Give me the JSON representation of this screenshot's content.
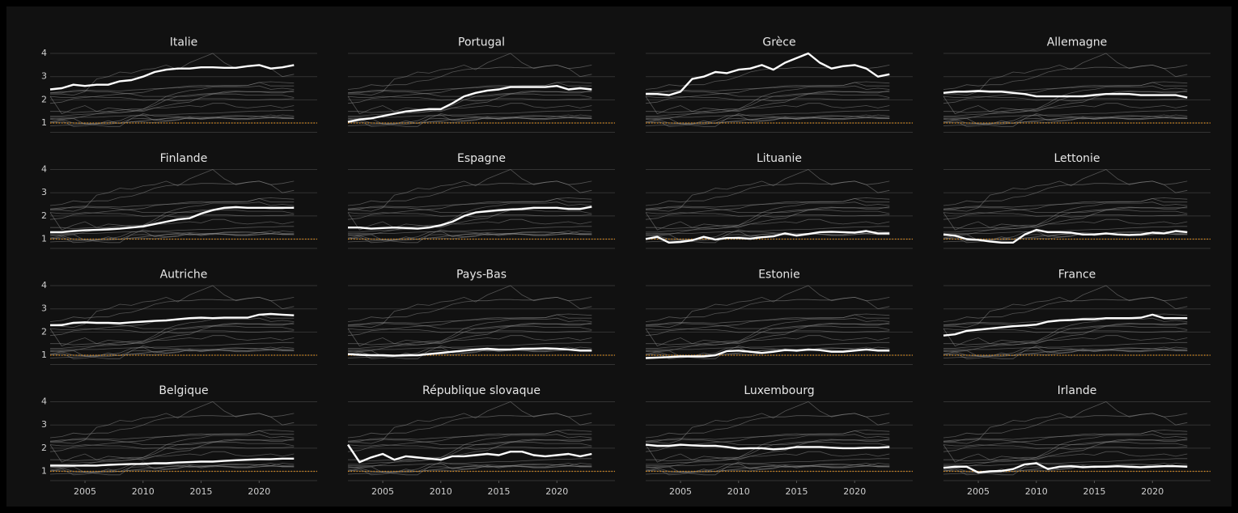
{
  "chart_data": {
    "type": "line",
    "x": [
      2002,
      2003,
      2004,
      2005,
      2006,
      2007,
      2008,
      2009,
      2010,
      2011,
      2012,
      2013,
      2014,
      2015,
      2016,
      2017,
      2018,
      2019,
      2020,
      2021,
      2022,
      2023
    ],
    "xlim": [
      2002,
      2025
    ],
    "xticks": [
      2005,
      2010,
      2015,
      2020
    ],
    "ylim": [
      0.6,
      4.2
    ],
    "yticks": [
      1,
      2,
      3,
      4
    ],
    "grid": true,
    "reference_line": 1,
    "reference_color": "#d98a1c",
    "highlight_color": "#ffffff",
    "context_color": "#8a8a8a",
    "series": [
      {
        "name": "Italie",
        "values": [
          2.45,
          2.5,
          2.65,
          2.6,
          2.65,
          2.65,
          2.8,
          2.85,
          3.0,
          3.2,
          3.3,
          3.35,
          3.35,
          3.4,
          3.4,
          3.38,
          3.38,
          3.45,
          3.5,
          3.35,
          3.4,
          3.5
        ]
      },
      {
        "name": "Portugal",
        "values": [
          1.05,
          1.15,
          1.2,
          1.3,
          1.4,
          1.5,
          1.55,
          1.6,
          1.6,
          1.85,
          2.15,
          2.3,
          2.4,
          2.45,
          2.55,
          2.55,
          2.55,
          2.55,
          2.6,
          2.45,
          2.5,
          2.45
        ]
      },
      {
        "name": "Grèce",
        "values": [
          2.25,
          2.25,
          2.2,
          2.35,
          2.9,
          3.0,
          3.2,
          3.15,
          3.3,
          3.35,
          3.5,
          3.3,
          3.6,
          3.8,
          4.0,
          3.6,
          3.35,
          3.45,
          3.5,
          3.35,
          3.0,
          3.1
        ]
      },
      {
        "name": "Allemagne",
        "values": [
          2.3,
          2.35,
          2.35,
          2.38,
          2.35,
          2.35,
          2.3,
          2.25,
          2.15,
          2.15,
          2.15,
          2.15,
          2.15,
          2.2,
          2.25,
          2.25,
          2.25,
          2.2,
          2.2,
          2.2,
          2.2,
          2.1
        ]
      },
      {
        "name": "Finlande",
        "values": [
          1.3,
          1.3,
          1.35,
          1.38,
          1.4,
          1.42,
          1.45,
          1.5,
          1.55,
          1.65,
          1.75,
          1.85,
          1.9,
          2.1,
          2.25,
          2.35,
          2.38,
          2.35,
          2.35,
          2.35,
          2.35,
          2.35
        ]
      },
      {
        "name": "Espagne",
        "values": [
          1.5,
          1.5,
          1.45,
          1.48,
          1.5,
          1.48,
          1.45,
          1.5,
          1.6,
          1.75,
          2.0,
          2.15,
          2.2,
          2.25,
          2.28,
          2.3,
          2.35,
          2.35,
          2.35,
          2.3,
          2.3,
          2.4
        ]
      },
      {
        "name": "Lituanie",
        "values": [
          1.0,
          1.1,
          0.85,
          0.88,
          0.95,
          1.1,
          0.98,
          1.05,
          1.05,
          1.02,
          1.08,
          1.12,
          1.25,
          1.15,
          1.22,
          1.3,
          1.32,
          1.3,
          1.28,
          1.35,
          1.25,
          1.25
        ]
      },
      {
        "name": "Lettonie",
        "values": [
          1.2,
          1.15,
          1.0,
          0.97,
          0.9,
          0.85,
          0.85,
          1.2,
          1.4,
          1.3,
          1.3,
          1.28,
          1.2,
          1.2,
          1.25,
          1.2,
          1.18,
          1.2,
          1.28,
          1.25,
          1.35,
          1.3
        ]
      },
      {
        "name": "Autriche",
        "values": [
          2.3,
          2.3,
          2.4,
          2.42,
          2.4,
          2.4,
          2.38,
          2.42,
          2.45,
          2.48,
          2.5,
          2.55,
          2.6,
          2.62,
          2.6,
          2.62,
          2.62,
          2.62,
          2.75,
          2.78,
          2.75,
          2.72
        ]
      },
      {
        "name": "Pays-Bas",
        "values": [
          1.05,
          1.02,
          1.0,
          1.0,
          0.98,
          1.0,
          1.0,
          1.05,
          1.1,
          1.15,
          1.2,
          1.25,
          1.28,
          1.25,
          1.25,
          1.28,
          1.28,
          1.3,
          1.28,
          1.25,
          1.2,
          1.2
        ]
      },
      {
        "name": "Estonie",
        "values": [
          0.88,
          0.9,
          0.92,
          0.95,
          0.95,
          0.95,
          1.0,
          1.18,
          1.2,
          1.15,
          1.1,
          1.15,
          1.22,
          1.2,
          1.25,
          1.22,
          1.15,
          1.15,
          1.2,
          1.25,
          1.2,
          1.2
        ]
      },
      {
        "name": "France",
        "values": [
          1.85,
          1.9,
          2.05,
          2.1,
          2.15,
          2.2,
          2.25,
          2.28,
          2.32,
          2.45,
          2.5,
          2.52,
          2.55,
          2.55,
          2.6,
          2.6,
          2.6,
          2.62,
          2.75,
          2.6,
          2.6,
          2.6
        ]
      },
      {
        "name": "Belgique",
        "values": [
          1.25,
          1.25,
          1.25,
          1.25,
          1.25,
          1.28,
          1.3,
          1.32,
          1.32,
          1.35,
          1.35,
          1.38,
          1.4,
          1.42,
          1.42,
          1.45,
          1.48,
          1.5,
          1.52,
          1.52,
          1.55,
          1.55
        ]
      },
      {
        "name": "République slovaque",
        "values": [
          2.15,
          1.4,
          1.6,
          1.75,
          1.5,
          1.65,
          1.6,
          1.55,
          1.5,
          1.65,
          1.65,
          1.7,
          1.75,
          1.7,
          1.85,
          1.85,
          1.7,
          1.65,
          1.7,
          1.75,
          1.65,
          1.75
        ]
      },
      {
        "name": "Luxembourg",
        "values": [
          2.15,
          2.1,
          2.1,
          2.15,
          2.12,
          2.1,
          2.1,
          2.05,
          1.98,
          2.0,
          2.0,
          1.95,
          1.98,
          2.05,
          2.05,
          2.05,
          2.02,
          2.0,
          2.0,
          2.02,
          2.02,
          2.05
        ]
      },
      {
        "name": "Irlande",
        "values": [
          1.15,
          1.2,
          1.2,
          0.95,
          1.0,
          1.02,
          1.1,
          1.3,
          1.35,
          1.1,
          1.2,
          1.22,
          1.18,
          1.2,
          1.2,
          1.22,
          1.2,
          1.18,
          1.2,
          1.22,
          1.22,
          1.2
        ]
      }
    ]
  }
}
